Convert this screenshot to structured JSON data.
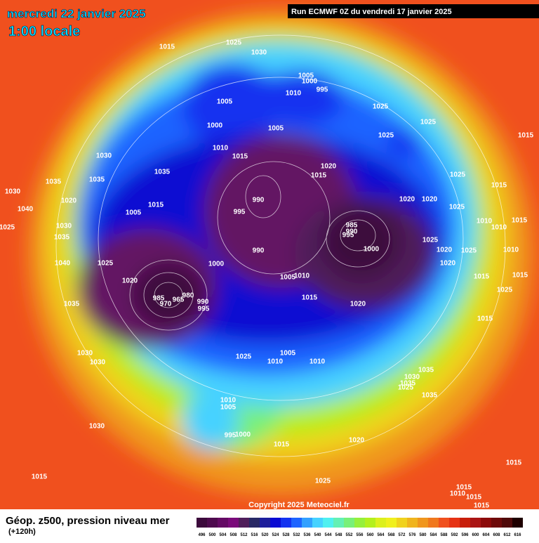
{
  "header": {
    "date": "mercredi 22 janvier 2025",
    "time": "1:00 locale",
    "run": "Run ECMWF 0Z du vendredi 17 janvier 2025"
  },
  "footer": {
    "copyright": "Copyright 2025 Meteociel.fr",
    "field": "Géop. z500, pression niveau mer",
    "lead": "(+120h)"
  },
  "colorbar": {
    "labels": [
      496,
      500,
      504,
      508,
      512,
      516,
      520,
      524,
      528,
      532,
      536,
      540,
      544,
      548,
      552,
      556,
      560,
      564,
      568,
      572,
      576,
      580,
      584,
      588,
      592,
      596,
      600,
      604,
      608,
      612,
      616
    ],
    "colors": [
      "#3c0a3c",
      "#4e0a4e",
      "#640a64",
      "#7a0a7a",
      "#501e5a",
      "#282864",
      "#1e1e9b",
      "#0a0ad2",
      "#1432f0",
      "#1e64ff",
      "#32a0ff",
      "#46d2ff",
      "#50f0f0",
      "#64f0b4",
      "#78f078",
      "#96f03c",
      "#b4f01e",
      "#dcf01e",
      "#f0f01e",
      "#f0d21e",
      "#f0b41e",
      "#f0961e",
      "#f0781e",
      "#f0501e",
      "#e63214",
      "#c81e0a",
      "#aa1414",
      "#8c0a0a",
      "#6e0a0a",
      "#500a0a",
      "#1e0000"
    ]
  },
  "isobars": [
    "1015",
    "1025",
    "1030",
    "1005",
    "1000",
    "995",
    "1010",
    "1005",
    "1000",
    "1010",
    "1015",
    "1005",
    "1030",
    "1035",
    "1035",
    "1035",
    "1030",
    "1020",
    "1040",
    "1005",
    "1015",
    "995",
    "990",
    "1020",
    "1015",
    "1025",
    "1025",
    "1025",
    "1015",
    "1025",
    "1015",
    "1020",
    "1020",
    "1025",
    "1010",
    "1010",
    "1015",
    "985",
    "990",
    "995",
    "1000",
    "990",
    "1025",
    "1020",
    "1025",
    "1010",
    "1020",
    "1015",
    "1015",
    "1025",
    "1015",
    "1030",
    "1035",
    "1025",
    "1040",
    "1025",
    "1020",
    "1000",
    "1005",
    "1010",
    "1015",
    "1020",
    "985",
    "980",
    "965",
    "970",
    "990",
    "995",
    "1035",
    "1030",
    "1030",
    "1025",
    "1005",
    "1010",
    "1010",
    "1035",
    "1030",
    "1035",
    "1025",
    "1035",
    "1010",
    "1005",
    "1030",
    "995",
    "1000",
    "1015",
    "1020",
    "1015",
    "1015",
    "1025",
    "1015",
    "1010",
    "1015",
    "1015"
  ]
}
